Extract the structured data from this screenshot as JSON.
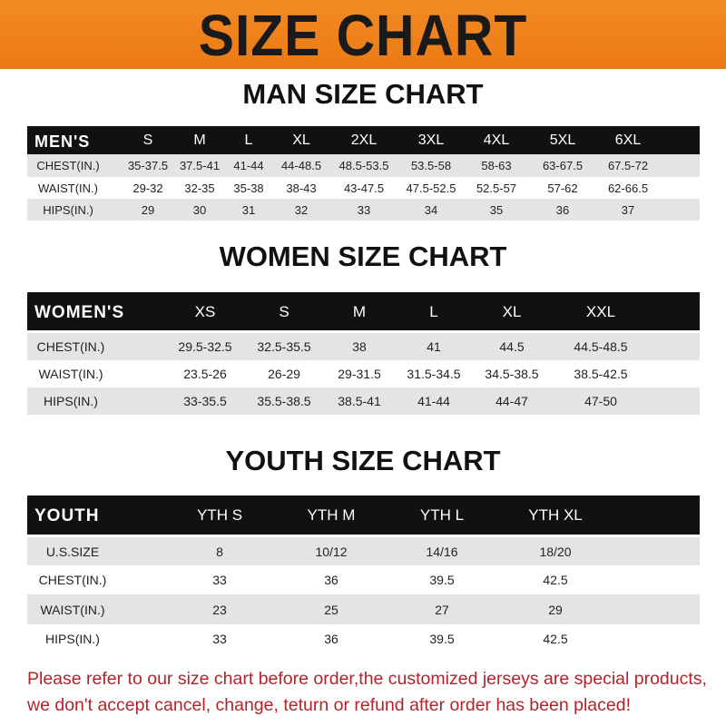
{
  "banner": {
    "title": "SIZE CHART",
    "color": "#ef8220"
  },
  "tables": [
    {
      "title": "MAN SIZE CHART",
      "header": [
        "MEN'S",
        "S",
        "M",
        "L",
        "XL",
        "2XL",
        "3XL",
        "4XL",
        "5XL",
        "6XL"
      ],
      "rows": [
        [
          "CHEST(IN.)",
          "35-37.5",
          "37.5-41",
          "41-44",
          "44-48.5",
          "48.5-53.5",
          "53.5-58",
          "58-63",
          "63-67.5",
          "67.5-72"
        ],
        [
          "WAIST(IN.)",
          "29-32",
          "32-35",
          "35-38",
          "38-43",
          "43-47.5",
          "47.5-52.5",
          "52.5-57",
          "57-62",
          "62-66.5"
        ],
        [
          "HIPS(IN.)",
          "29",
          "30",
          "31",
          "32",
          "33",
          "34",
          "35",
          "36",
          "37"
        ]
      ]
    },
    {
      "title": "WOMEN SIZE CHART",
      "header": [
        "WOMEN'S",
        "XS",
        "S",
        "M",
        "L",
        "XL",
        "XXL"
      ],
      "rows": [
        [
          "CHEST(IN.)",
          "29.5-32.5",
          "32.5-35.5",
          "38",
          "41",
          "44.5",
          "44.5-48.5"
        ],
        [
          "WAIST(IN.)",
          "23.5-26",
          "26-29",
          "29-31.5",
          "31.5-34.5",
          "34.5-38.5",
          "38.5-42.5"
        ],
        [
          "HIPS(IN.)",
          "33-35.5",
          "35.5-38.5",
          "38.5-41",
          "41-44",
          "44-47",
          "47-50"
        ]
      ]
    },
    {
      "title": "YOUTH SIZE CHART",
      "header": [
        "YOUTH",
        "YTH S",
        "YTH M",
        "YTH L",
        "YTH XL"
      ],
      "rows": [
        [
          "U.S.SIZE",
          "8",
          "10/12",
          "14/16",
          "18/20"
        ],
        [
          "CHEST(IN.)",
          "33",
          "36",
          "39.5",
          "42.5"
        ],
        [
          "WAIST(IN.)",
          "23",
          "25",
          "27",
          "29"
        ],
        [
          "HIPS(IN.)",
          "33",
          "36",
          "39.5",
          "42.5"
        ]
      ]
    }
  ],
  "footer": {
    "line1": "Please refer to our size chart before order,the customized jerseys are special products,",
    "line2": "we don't accept cancel, change, teturn or refund after order has been placed!",
    "color": "#b3242a"
  }
}
